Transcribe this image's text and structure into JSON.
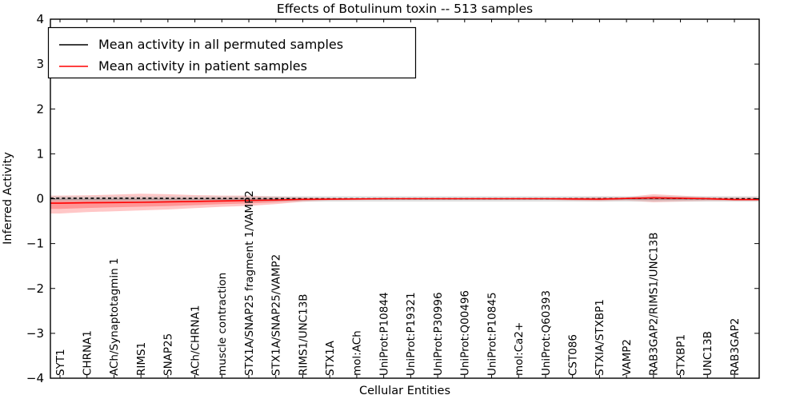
{
  "figure": {
    "title": "Effects of Botulinum toxin -- 513 samples"
  },
  "legend": {
    "position": "upper left",
    "entries": [
      {
        "label": "Mean activity in all permuted samples",
        "color": "#000000"
      },
      {
        "label": "Mean activity in patient samples",
        "color": "#ff0000"
      }
    ]
  },
  "chart_data": {
    "type": "line",
    "title": "Effects of Botulinum toxin -- 513 samples",
    "xlabel": "Cellular Entities",
    "ylabel": "Inferred Activity",
    "ylim": [
      -4,
      4
    ],
    "yticks": [
      4,
      3,
      2,
      1,
      0,
      -1,
      -2,
      -3,
      -4
    ],
    "grid": false,
    "legend_position": "upper left",
    "categories": [
      "SYT1",
      "CHRNA1",
      "ACh/Synaptotagmin 1",
      "RIMS1",
      "SNAP25",
      "ACh/CHRNA1",
      "muscle contraction",
      "STX1A/SNAP25 fragment 1/VAMP2",
      "STX1A/SNAP25/VAMP2",
      "RIMS1/UNC13B",
      "STX1A",
      "mol:ACh",
      "UniProt:P10844",
      "UniProt:P19321",
      "UniProt:P30996",
      "UniProt:Q00496",
      "UniProt:P10845",
      "mol:Ca2+",
      "UniProt:Q60393",
      "CST086",
      "STXIA/STXBP1",
      "VAMP2",
      "RAB3GAP2/RIMS1/UNC13B",
      "STXBP1",
      "UNC13B",
      "RAB3GAP2"
    ],
    "series": [
      {
        "name": "Mean activity in all permuted samples",
        "color": "#000000",
        "linestyle": "dashed",
        "values": [
          0.01,
          0.01,
          0.01,
          0.01,
          0.008,
          0.006,
          0.005,
          0.004,
          0.002,
          0,
          0,
          0,
          0,
          0,
          0,
          0,
          0,
          0,
          0,
          0,
          0,
          0.005,
          0.01,
          0.005,
          0,
          0
        ]
      },
      {
        "name": "Mean activity in patient samples",
        "color": "#ff0000",
        "linestyle": "solid",
        "values": [
          -0.1,
          -0.09,
          -0.085,
          -0.08,
          -0.07,
          -0.06,
          -0.05,
          -0.04,
          -0.03,
          -0.015,
          -0.01,
          -0.005,
          0,
          0,
          0,
          0,
          0,
          0,
          0,
          -0.005,
          -0.01,
          0.005,
          0.02,
          0.01,
          0,
          -0.02
        ]
      }
    ],
    "bands": [
      {
        "name": "patient-std-outer",
        "color": "#ff0000",
        "opacity": 0.22,
        "upper": [
          0.07,
          0.075,
          0.09,
          0.11,
          0.1,
          0.08,
          0.07,
          0.07,
          0.05,
          0.03,
          0.02,
          0.015,
          0.01,
          0.01,
          0.01,
          0.01,
          0.01,
          0.01,
          0.015,
          0.03,
          0.04,
          0.035,
          0.1,
          0.07,
          0.04,
          0.03
        ],
        "lower": [
          -0.33,
          -0.3,
          -0.28,
          -0.26,
          -0.24,
          -0.21,
          -0.18,
          -0.16,
          -0.12,
          -0.07,
          -0.04,
          -0.03,
          -0.02,
          -0.015,
          -0.015,
          -0.015,
          -0.015,
          -0.015,
          -0.02,
          -0.045,
          -0.055,
          -0.04,
          -0.08,
          -0.065,
          -0.05,
          -0.05
        ]
      },
      {
        "name": "patient-std-inner",
        "color": "#ff0000",
        "opacity": 0.25,
        "upper": [
          -0.015,
          -0.008,
          0.003,
          0.015,
          0.015,
          0.01,
          0.01,
          0.015,
          0.01,
          0.008,
          0.005,
          0.005,
          0.005,
          0.005,
          0.005,
          0.005,
          0.005,
          0.005,
          0.008,
          0.013,
          0.015,
          0.02,
          0.06,
          0.04,
          0.02,
          0.005
        ],
        "lower": [
          -0.227,
          -0.206,
          -0.192,
          -0.179,
          -0.164,
          -0.143,
          -0.122,
          -0.106,
          -0.08,
          -0.045,
          -0.027,
          -0.019,
          -0.011,
          -0.008,
          -0.008,
          -0.008,
          -0.008,
          -0.008,
          -0.011,
          -0.027,
          -0.035,
          -0.02,
          -0.035,
          -0.031,
          -0.028,
          -0.037
        ]
      },
      {
        "name": "permuted-std",
        "color": "#bbbbbb",
        "opacity": 0.45,
        "upper": 0.055,
        "lower": -0.065
      }
    ]
  }
}
